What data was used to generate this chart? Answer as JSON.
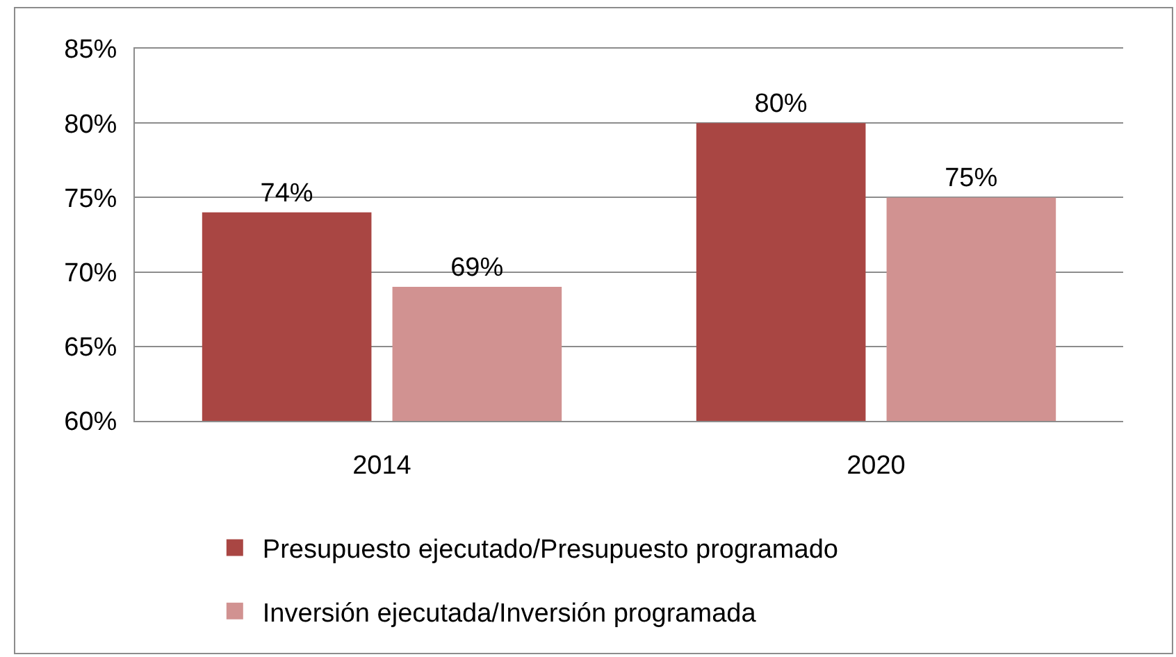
{
  "chart_data": {
    "type": "bar",
    "categories": [
      "2014",
      "2020"
    ],
    "series": [
      {
        "name": "Presupuesto ejecutado/Presupuesto programado",
        "color": "#a94643",
        "values": [
          74,
          80
        ],
        "value_labels": [
          "74%",
          "80%"
        ]
      },
      {
        "name": "Inversión ejecutada/Inversión programada",
        "color": "#d19291",
        "values": [
          69,
          75
        ],
        "value_labels": [
          "69%",
          "75%"
        ]
      }
    ],
    "ylim": [
      60,
      85
    ],
    "yticks": [
      {
        "value": 60,
        "label": "60%"
      },
      {
        "value": 65,
        "label": "65%"
      },
      {
        "value": 70,
        "label": "70%"
      },
      {
        "value": 75,
        "label": "75%"
      },
      {
        "value": 80,
        "label": "80%"
      },
      {
        "value": 85,
        "label": "85%"
      }
    ],
    "grid": "y",
    "legend": "bottom"
  }
}
